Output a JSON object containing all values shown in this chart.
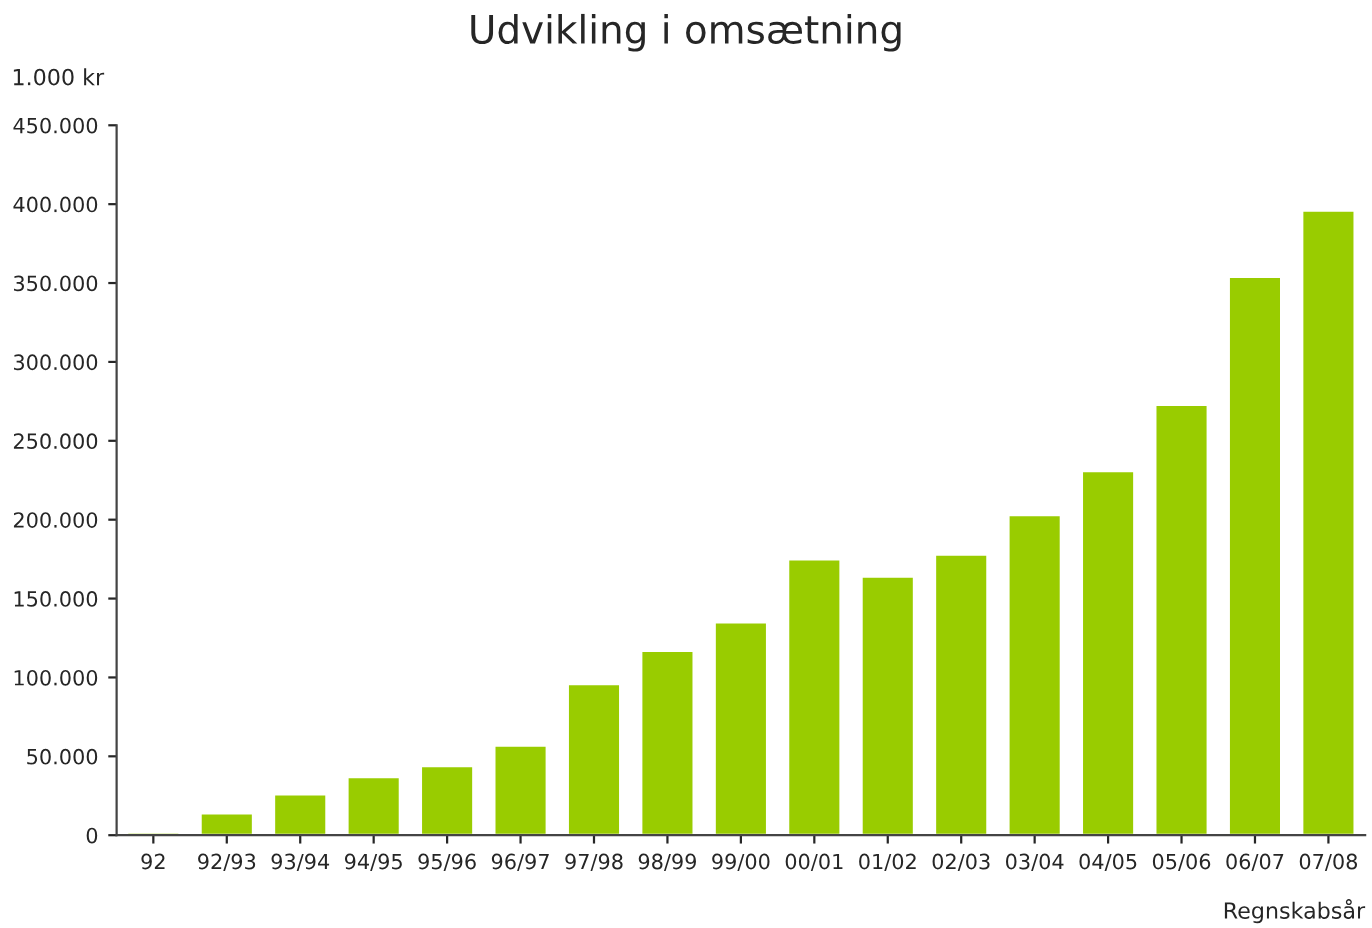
{
  "chart_data": {
    "type": "bar",
    "title": "Udvikling i omsætning",
    "ylabel": "1.000 kr",
    "xlabel": "Regnskabsår",
    "categories": [
      "92",
      "92/93",
      "93/94",
      "94/95",
      "95/96",
      "96/97",
      "97/98",
      "98/99",
      "99/00",
      "00/01",
      "01/02",
      "02/03",
      "03/04",
      "04/05",
      "05/06",
      "06/07",
      "07/08"
    ],
    "values": [
      2000,
      14000,
      26000,
      37000,
      44000,
      57000,
      96000,
      117000,
      135000,
      175000,
      164000,
      178000,
      203000,
      231000,
      273000,
      354000,
      396000
    ],
    "color": "#99cc00",
    "ylim": [
      0,
      450000
    ],
    "yticks": [
      0,
      {
        "value": 50000,
        "label": "50.000"
      },
      {
        "value": 100000,
        "label": "100.000"
      },
      {
        "value": 150000,
        "label": "150.000"
      },
      {
        "value": 200000,
        "label": "200.000"
      },
      {
        "value": 250000,
        "label": "250.000"
      },
      {
        "value": 300000,
        "label": "300.000"
      },
      {
        "value": 350000,
        "label": "350.000"
      },
      {
        "value": 400000,
        "label": "400.000"
      },
      {
        "value": 450000,
        "label": "450.000"
      }
    ],
    "grid": false,
    "legend": false
  }
}
